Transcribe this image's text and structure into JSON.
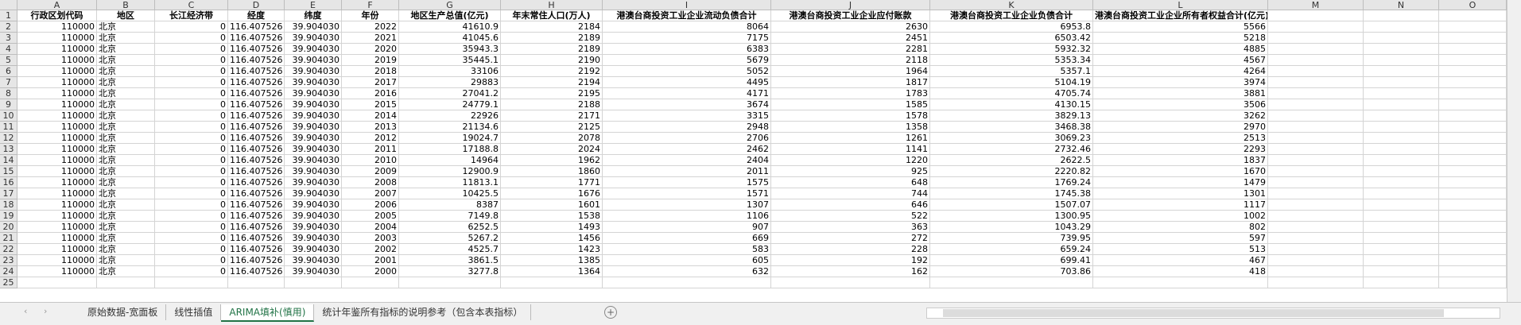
{
  "sheet": {
    "column_letters": [
      "A",
      "B",
      "C",
      "D",
      "E",
      "F",
      "G",
      "H",
      "I",
      "J",
      "K",
      "L",
      "M",
      "N",
      "O"
    ],
    "row_numbers": [
      1,
      2,
      3,
      4,
      5,
      6,
      7,
      8,
      9,
      10,
      11,
      12,
      13,
      14,
      15,
      16,
      17,
      18,
      19,
      20,
      21,
      22,
      23,
      24,
      25
    ],
    "header": [
      "行政区划代码",
      "地区",
      "长江经济带",
      "经度",
      "纬度",
      "年份",
      "地区生产总值(亿元)",
      "年末常住人口(万人)",
      "港澳台商投资工业企业流动负债合计",
      "港澳台商投资工业企业应付账款",
      "港澳台商投资工业企业负债合计",
      "港澳台商投资工业企业所有者权益合计(亿元)"
    ],
    "rows": [
      [
        "110000",
        "北京",
        "0",
        "116.407526",
        "39.904030",
        "2022",
        "41610.9",
        "2184",
        "8064",
        "2630",
        "6953.8",
        "5566"
      ],
      [
        "110000",
        "北京",
        "0",
        "116.407526",
        "39.904030",
        "2021",
        "41045.6",
        "2189",
        "7175",
        "2451",
        "6503.42",
        "5218"
      ],
      [
        "110000",
        "北京",
        "0",
        "116.407526",
        "39.904030",
        "2020",
        "35943.3",
        "2189",
        "6383",
        "2281",
        "5932.32",
        "4885"
      ],
      [
        "110000",
        "北京",
        "0",
        "116.407526",
        "39.904030",
        "2019",
        "35445.1",
        "2190",
        "5679",
        "2118",
        "5353.34",
        "4567"
      ],
      [
        "110000",
        "北京",
        "0",
        "116.407526",
        "39.904030",
        "2018",
        "33106",
        "2192",
        "5052",
        "1964",
        "5357.1",
        "4264"
      ],
      [
        "110000",
        "北京",
        "0",
        "116.407526",
        "39.904030",
        "2017",
        "29883",
        "2194",
        "4495",
        "1817",
        "5104.19",
        "3974"
      ],
      [
        "110000",
        "北京",
        "0",
        "116.407526",
        "39.904030",
        "2016",
        "27041.2",
        "2195",
        "4171",
        "1783",
        "4705.74",
        "3881"
      ],
      [
        "110000",
        "北京",
        "0",
        "116.407526",
        "39.904030",
        "2015",
        "24779.1",
        "2188",
        "3674",
        "1585",
        "4130.15",
        "3506"
      ],
      [
        "110000",
        "北京",
        "0",
        "116.407526",
        "39.904030",
        "2014",
        "22926",
        "2171",
        "3315",
        "1578",
        "3829.13",
        "3262"
      ],
      [
        "110000",
        "北京",
        "0",
        "116.407526",
        "39.904030",
        "2013",
        "21134.6",
        "2125",
        "2948",
        "1358",
        "3468.38",
        "2970"
      ],
      [
        "110000",
        "北京",
        "0",
        "116.407526",
        "39.904030",
        "2012",
        "19024.7",
        "2078",
        "2706",
        "1261",
        "3069.23",
        "2513"
      ],
      [
        "110000",
        "北京",
        "0",
        "116.407526",
        "39.904030",
        "2011",
        "17188.8",
        "2024",
        "2462",
        "1141",
        "2732.46",
        "2293"
      ],
      [
        "110000",
        "北京",
        "0",
        "116.407526",
        "39.904030",
        "2010",
        "14964",
        "1962",
        "2404",
        "1220",
        "2622.5",
        "1837"
      ],
      [
        "110000",
        "北京",
        "0",
        "116.407526",
        "39.904030",
        "2009",
        "12900.9",
        "1860",
        "2011",
        "925",
        "2220.82",
        "1670"
      ],
      [
        "110000",
        "北京",
        "0",
        "116.407526",
        "39.904030",
        "2008",
        "11813.1",
        "1771",
        "1575",
        "648",
        "1769.24",
        "1479"
      ],
      [
        "110000",
        "北京",
        "0",
        "116.407526",
        "39.904030",
        "2007",
        "10425.5",
        "1676",
        "1571",
        "744",
        "1745.38",
        "1301"
      ],
      [
        "110000",
        "北京",
        "0",
        "116.407526",
        "39.904030",
        "2006",
        "8387",
        "1601",
        "1307",
        "646",
        "1507.07",
        "1117"
      ],
      [
        "110000",
        "北京",
        "0",
        "116.407526",
        "39.904030",
        "2005",
        "7149.8",
        "1538",
        "1106",
        "522",
        "1300.95",
        "1002"
      ],
      [
        "110000",
        "北京",
        "0",
        "116.407526",
        "39.904030",
        "2004",
        "6252.5",
        "1493",
        "907",
        "363",
        "1043.29",
        "802"
      ],
      [
        "110000",
        "北京",
        "0",
        "116.407526",
        "39.904030",
        "2003",
        "5267.2",
        "1456",
        "669",
        "272",
        "739.95",
        "597"
      ],
      [
        "110000",
        "北京",
        "0",
        "116.407526",
        "39.904030",
        "2002",
        "4525.7",
        "1423",
        "583",
        "228",
        "659.24",
        "513"
      ],
      [
        "110000",
        "北京",
        "0",
        "116.407526",
        "39.904030",
        "2001",
        "3861.5",
        "1385",
        "605",
        "192",
        "699.41",
        "467"
      ],
      [
        "110000",
        "北京",
        "0",
        "116.407526",
        "39.904030",
        "2000",
        "3277.8",
        "1364",
        "632",
        "162",
        "703.86",
        "418"
      ]
    ],
    "tabs": [
      "原始数据-宽面板",
      "线性插值",
      "ARIMA填补(慎用)",
      "统计年鉴所有指标的说明参考（包含本表指标）"
    ],
    "active_tab": 2
  }
}
